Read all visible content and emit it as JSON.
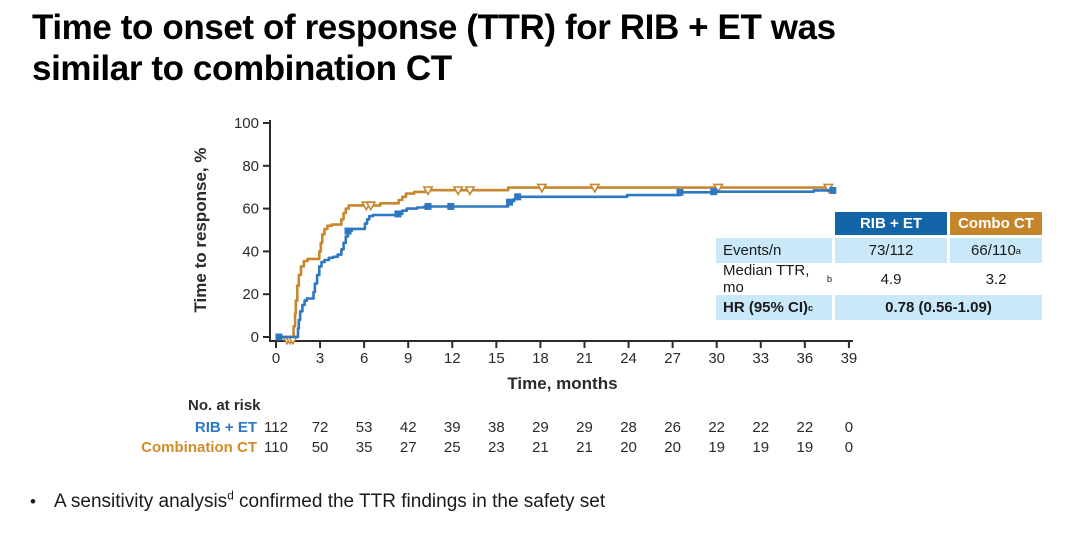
{
  "title": {
    "line1": "Time to onset of response (TTR) for RIB + ET was",
    "line2": "similar to combination CT"
  },
  "colors": {
    "rib_blue": "#2e78c2",
    "combo_orange": "#c8872e",
    "header_blue": "#1464a8",
    "header_gold": "#c5862b",
    "row_light_blue": "#c9e8f9",
    "axis_black": "#2b2b2b"
  },
  "chart_data": {
    "type": "line",
    "variant": "step-cumulative-incidence",
    "title": "",
    "xlabel": "Time, months",
    "ylabel": "Time to response, %",
    "xlim": [
      0,
      39
    ],
    "ylim": [
      0,
      100
    ],
    "xticks": [
      0,
      3,
      6,
      9,
      12,
      15,
      18,
      21,
      24,
      27,
      30,
      33,
      36,
      39
    ],
    "yticks": [
      0,
      20,
      40,
      60,
      80,
      100
    ],
    "grid": false,
    "legend_position": "none",
    "series": [
      {
        "name": "Combination CT",
        "color": "#c8872e",
        "marker": "open-triangle-down",
        "points": [
          [
            0,
            0
          ],
          [
            1.15,
            0
          ],
          [
            1.2,
            5
          ],
          [
            1.3,
            11
          ],
          [
            1.35,
            17
          ],
          [
            1.45,
            24
          ],
          [
            1.55,
            29
          ],
          [
            1.7,
            33
          ],
          [
            1.9,
            35.5
          ],
          [
            2.15,
            36.5
          ],
          [
            2.85,
            36.5
          ],
          [
            2.95,
            40
          ],
          [
            3.05,
            44
          ],
          [
            3.15,
            48
          ],
          [
            3.3,
            50.5
          ],
          [
            3.5,
            52
          ],
          [
            3.8,
            52.5
          ],
          [
            4.35,
            52.5
          ],
          [
            4.45,
            55
          ],
          [
            4.6,
            58
          ],
          [
            4.75,
            60
          ],
          [
            4.95,
            61.5
          ],
          [
            6.9,
            61.5
          ],
          [
            7.1,
            62.5
          ],
          [
            8.15,
            62.5
          ],
          [
            8.35,
            64
          ],
          [
            8.6,
            65.5
          ],
          [
            8.85,
            67
          ],
          [
            9.4,
            67.8
          ],
          [
            10.2,
            68.6
          ],
          [
            15.6,
            68.6
          ],
          [
            15.8,
            69.8
          ],
          [
            37.6,
            69.8
          ]
        ],
        "marker_points": [
          [
            0.75,
            -1.2
          ],
          [
            0.95,
            -1.2
          ],
          [
            1.15,
            -1.2
          ],
          [
            6.15,
            61.5
          ],
          [
            6.45,
            61.5
          ],
          [
            10.35,
            68.6
          ],
          [
            12.4,
            68.6
          ],
          [
            13.2,
            68.6
          ],
          [
            18.1,
            69.8
          ],
          [
            21.7,
            69.8
          ],
          [
            30.1,
            69.8
          ],
          [
            37.6,
            69.8
          ]
        ]
      },
      {
        "name": "RIB + ET",
        "color": "#2e78c2",
        "marker": "filled-square",
        "points": [
          [
            0,
            0
          ],
          [
            1.45,
            0
          ],
          [
            1.5,
            4
          ],
          [
            1.55,
            8
          ],
          [
            1.65,
            12
          ],
          [
            1.8,
            15
          ],
          [
            1.95,
            17
          ],
          [
            2.1,
            18
          ],
          [
            2.45,
            18
          ],
          [
            2.55,
            21
          ],
          [
            2.65,
            25
          ],
          [
            2.8,
            29
          ],
          [
            2.95,
            33
          ],
          [
            3.1,
            35
          ],
          [
            3.3,
            36
          ],
          [
            3.6,
            37
          ],
          [
            3.9,
            37.5
          ],
          [
            4.2,
            38.5
          ],
          [
            4.45,
            41
          ],
          [
            4.6,
            44
          ],
          [
            4.75,
            47
          ],
          [
            4.9,
            49.5
          ],
          [
            5.15,
            50.5
          ],
          [
            5.95,
            50.5
          ],
          [
            6.05,
            53
          ],
          [
            6.2,
            55
          ],
          [
            6.35,
            56.5
          ],
          [
            6.6,
            57
          ],
          [
            8.2,
            57.5
          ],
          [
            8.6,
            59
          ],
          [
            8.9,
            60
          ],
          [
            9.6,
            60.5
          ],
          [
            10.1,
            61
          ],
          [
            15.6,
            61
          ],
          [
            15.8,
            62.5
          ],
          [
            16,
            63.5
          ],
          [
            16.2,
            64.5
          ],
          [
            16.45,
            65.5
          ],
          [
            23.7,
            65.5
          ],
          [
            23.9,
            66.3
          ],
          [
            27.3,
            66.3
          ],
          [
            27.5,
            67.6
          ],
          [
            29.8,
            67.9
          ],
          [
            36.4,
            67.9
          ],
          [
            36.6,
            68.5
          ],
          [
            37.9,
            68.5
          ]
        ],
        "marker_points": [
          [
            0.2,
            0
          ],
          [
            4.9,
            49.5
          ],
          [
            8.3,
            57.5
          ],
          [
            10.35,
            61
          ],
          [
            11.9,
            61
          ],
          [
            15.9,
            63
          ],
          [
            16.45,
            65.5
          ],
          [
            27.5,
            67.6
          ],
          [
            29.8,
            67.9
          ],
          [
            37.9,
            68.5
          ]
        ]
      }
    ]
  },
  "results_table": {
    "col_headers": {
      "rib": "RIB + ET",
      "combo": "Combo CT"
    },
    "rows": {
      "events": {
        "label": "Events/n",
        "rib": "73/112",
        "combo": "66/110",
        "combo_sup": "a"
      },
      "median": {
        "label": "Median TTR, mo",
        "label_sup": "b",
        "rib": "4.9",
        "combo": "3.2"
      },
      "hr": {
        "label": "HR (95% CI)",
        "label_sup": "c",
        "value": "0.78 (0.56-1.09)"
      }
    }
  },
  "at_risk": {
    "heading": "No. at risk",
    "rows": [
      {
        "label": "RIB + ET",
        "color": "#2e78c2",
        "counts": [
          112,
          72,
          53,
          42,
          39,
          38,
          29,
          29,
          28,
          26,
          22,
          22,
          22,
          0
        ]
      },
      {
        "label": "Combination CT",
        "color": "#d18c2a",
        "counts": [
          110,
          50,
          35,
          27,
          25,
          23,
          21,
          21,
          20,
          20,
          19,
          19,
          19,
          0
        ]
      }
    ]
  },
  "bullet": {
    "text_before": "A sensitivity analysis",
    "sup": "d",
    "text_after": " confirmed the TTR findings in the safety set",
    "dot": "•"
  }
}
